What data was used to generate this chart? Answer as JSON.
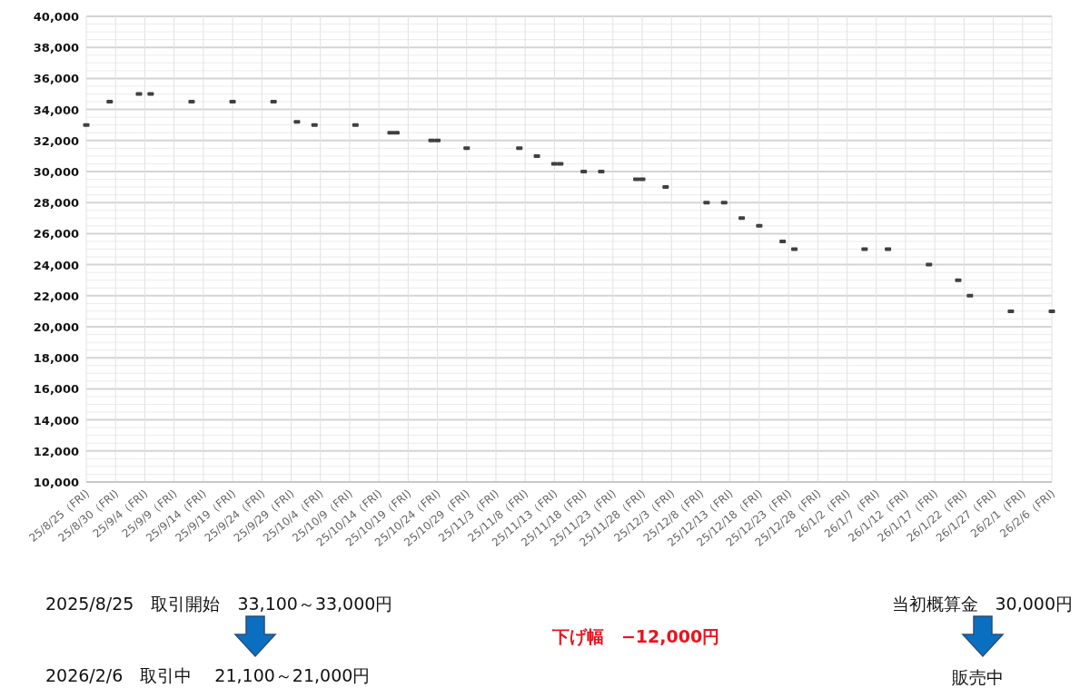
{
  "chart_data": {
    "type": "scatter",
    "marker": "square",
    "grid": true,
    "x": [
      "2025-08-25",
      "2025-08-29",
      "2025-09-03",
      "2025-09-05",
      "2025-09-12",
      "2025-09-19",
      "2025-09-26",
      "2025-09-30",
      "2025-10-03",
      "2025-10-10",
      "2025-10-16",
      "2025-10-17",
      "2025-10-23",
      "2025-10-24",
      "2025-10-29",
      "2025-11-07",
      "2025-11-10",
      "2025-11-13",
      "2025-11-14",
      "2025-11-18",
      "2025-11-21",
      "2025-11-27",
      "2025-11-28",
      "2025-12-02",
      "2025-12-09",
      "2025-12-12",
      "2025-12-15",
      "2025-12-18",
      "2025-12-22",
      "2025-12-24",
      "2026-01-05",
      "2026-01-09",
      "2026-01-16",
      "2026-01-21",
      "2026-01-23",
      "2026-01-30",
      "2026-02-06"
    ],
    "series": [
      {
        "color": "#404040",
        "values": [
          33000,
          34500,
          35000,
          35000,
          34500,
          34500,
          34500,
          33200,
          33000,
          33000,
          32500,
          32500,
          32000,
          32000,
          31500,
          31500,
          31000,
          30500,
          30500,
          30000,
          30000,
          29500,
          29500,
          29000,
          28000,
          28000,
          27000,
          26500,
          25500,
          25000,
          25000,
          25000,
          24000,
          23000,
          22000,
          21000,
          21000
        ]
      }
    ],
    "xlim": [
      "2025-08-25",
      "2026-02-06"
    ],
    "xticks": [
      {
        "value": "2025-08-25",
        "label": "25/8/25（FRI)"
      },
      {
        "value": "2025-08-30",
        "label": "25/8/30（FRI)"
      },
      {
        "value": "2025-09-04",
        "label": "25/9/4（FRI)"
      },
      {
        "value": "2025-09-09",
        "label": "25/9/9（FRI)"
      },
      {
        "value": "2025-09-14",
        "label": "25/9/14（FRI)"
      },
      {
        "value": "2025-09-19",
        "label": "25/9/19（FRI)"
      },
      {
        "value": "2025-09-24",
        "label": "25/9/24（FRI)"
      },
      {
        "value": "2025-09-29",
        "label": "25/9/29（FRI)"
      },
      {
        "value": "2025-10-04",
        "label": "25/10/4（FRI)"
      },
      {
        "value": "2025-10-09",
        "label": "25/10/9（FRI)"
      },
      {
        "value": "2025-10-14",
        "label": "25/10/14（FRI)"
      },
      {
        "value": "2025-10-19",
        "label": "25/10/19（FRI)"
      },
      {
        "value": "2025-10-24",
        "label": "25/10/24（FRI)"
      },
      {
        "value": "2025-10-29",
        "label": "25/10/29（FRI)"
      },
      {
        "value": "2025-11-03",
        "label": "25/11/3（FRI)"
      },
      {
        "value": "2025-11-08",
        "label": "25/11/8（FRI)"
      },
      {
        "value": "2025-11-13",
        "label": "25/11/13（FRI)"
      },
      {
        "value": "2025-11-18",
        "label": "25/11/18（FRI)"
      },
      {
        "value": "2025-11-23",
        "label": "25/11/23（FRI)"
      },
      {
        "value": "2025-11-28",
        "label": "25/11/28（FRI)"
      },
      {
        "value": "2025-12-03",
        "label": "25/12/3（FRI)"
      },
      {
        "value": "2025-12-08",
        "label": "25/12/8（FRI)"
      },
      {
        "value": "2025-12-13",
        "label": "25/12/13（FRI)"
      },
      {
        "value": "2025-12-18",
        "label": "25/12/18（FRI)"
      },
      {
        "value": "2025-12-23",
        "label": "25/12/23（FRI)"
      },
      {
        "value": "2025-12-28",
        "label": "25/12/28（FRI)"
      },
      {
        "value": "2026-01-02",
        "label": "26/1/2（FRI)"
      },
      {
        "value": "2026-01-07",
        "label": "26/1/7（FRI)"
      },
      {
        "value": "2026-01-12",
        "label": "26/1/12（FRI)"
      },
      {
        "value": "2026-01-17",
        "label": "26/1/17（FRI)"
      },
      {
        "value": "2026-01-22",
        "label": "26/1/22（FRI)"
      },
      {
        "value": "2026-01-27",
        "label": "26/1/27（FRI)"
      },
      {
        "value": "2026-02-01",
        "label": "26/2/1（FRI)"
      },
      {
        "value": "2026-02-06",
        "label": "26/2/6（FRI)"
      }
    ],
    "ylim": [
      10000,
      40000
    ],
    "yticks": [
      {
        "value": 10000,
        "label": "10,000"
      },
      {
        "value": 10500,
        "label": null
      },
      {
        "value": 11000,
        "label": null
      },
      {
        "value": 11500,
        "label": null
      },
      {
        "value": 12000,
        "label": "12,000"
      },
      {
        "value": 12500,
        "label": null
      },
      {
        "value": 13000,
        "label": null
      },
      {
        "value": 13500,
        "label": null
      },
      {
        "value": 14000,
        "label": "14,000"
      },
      {
        "value": 14500,
        "label": null
      },
      {
        "value": 15000,
        "label": null
      },
      {
        "value": 15500,
        "label": null
      },
      {
        "value": 16000,
        "label": "16,000"
      },
      {
        "value": 16500,
        "label": null
      },
      {
        "value": 17000,
        "label": null
      },
      {
        "value": 17500,
        "label": null
      },
      {
        "value": 18000,
        "label": "18,000"
      },
      {
        "value": 18500,
        "label": null
      },
      {
        "value": 19000,
        "label": null
      },
      {
        "value": 19500,
        "label": null
      },
      {
        "value": 20000,
        "label": "20,000"
      },
      {
        "value": 20500,
        "label": null
      },
      {
        "value": 21000,
        "label": null
      },
      {
        "value": 21500,
        "label": null
      },
      {
        "value": 22000,
        "label": "22,000"
      },
      {
        "value": 22500,
        "label": null
      },
      {
        "value": 23000,
        "label": null
      },
      {
        "value": 23500,
        "label": null
      },
      {
        "value": 24000,
        "label": "24,000"
      },
      {
        "value": 24500,
        "label": null
      },
      {
        "value": 25000,
        "label": null
      },
      {
        "value": 25500,
        "label": null
      },
      {
        "value": 26000,
        "label": "26,000"
      },
      {
        "value": 26500,
        "label": null
      },
      {
        "value": 27000,
        "label": null
      },
      {
        "value": 27500,
        "label": null
      },
      {
        "value": 28000,
        "label": "28,000"
      },
      {
        "value": 28500,
        "label": null
      },
      {
        "value": 29000,
        "label": null
      },
      {
        "value": 29500,
        "label": null
      },
      {
        "value": 30000,
        "label": "30,000"
      },
      {
        "value": 30500,
        "label": null
      },
      {
        "value": 31000,
        "label": null
      },
      {
        "value": 31500,
        "label": null
      },
      {
        "value": 32000,
        "label": "32,000"
      },
      {
        "value": 32500,
        "label": null
      },
      {
        "value": 33000,
        "label": null
      },
      {
        "value": 33500,
        "label": null
      },
      {
        "value": 34000,
        "label": "34,000"
      },
      {
        "value": 34500,
        "label": null
      },
      {
        "value": 35000,
        "label": null
      },
      {
        "value": 35500,
        "label": null
      },
      {
        "value": 36000,
        "label": "36,000"
      },
      {
        "value": 36500,
        "label": null
      },
      {
        "value": 37000,
        "label": null
      },
      {
        "value": 37500,
        "label": null
      },
      {
        "value": 38000,
        "label": "38,000"
      },
      {
        "value": 38500,
        "label": null
      },
      {
        "value": 39000,
        "label": null
      },
      {
        "value": 39500,
        "label": null
      },
      {
        "value": 40000,
        "label": "40,000"
      }
    ],
    "annotations": [
      "2025/8/25　取引開始　33,100～33,000円",
      "2026/2/6　取引中　 21,100～21,000円",
      "当初概算金　30,000円",
      "販売中",
      "下げ幅　−12,000円"
    ]
  }
}
